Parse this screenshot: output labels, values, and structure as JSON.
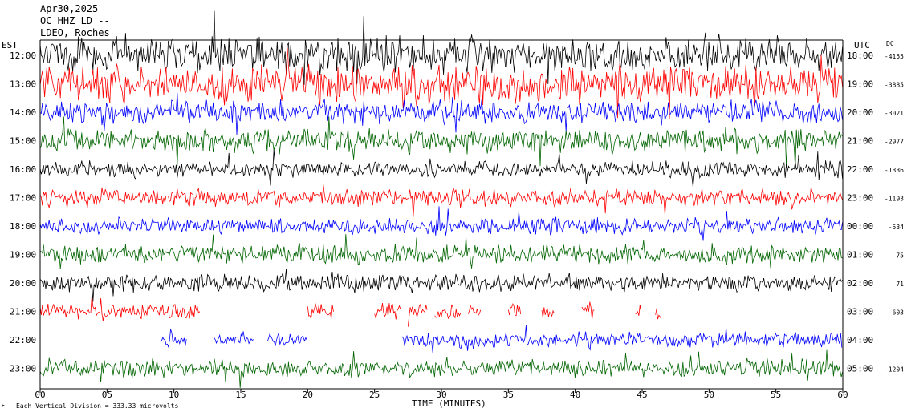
{
  "header": {
    "date": "Apr30,2025",
    "channel": "OC HHZ LD --",
    "station": "LDEO, Roches"
  },
  "axes": {
    "left_label": "EST",
    "right_label": "UTC",
    "dc_label": "DC",
    "x_title": "TIME (MINUTES)",
    "footer_note": "Each Vertical Division =  333.33 microvolts"
  },
  "colors": {
    "trace_cycle": [
      "#000000",
      "#ff0000",
      "#0000ff",
      "#006400"
    ],
    "background": "#ffffff"
  },
  "chart_data": {
    "type": "line",
    "title": "",
    "xlabel": "TIME (MINUTES)",
    "ylabel": "",
    "x_range": [
      0,
      60
    ],
    "x_ticks": [
      "00",
      "05",
      "10",
      "15",
      "20",
      "25",
      "30",
      "35",
      "40",
      "45",
      "50",
      "55",
      "60"
    ],
    "grid": false,
    "rows": [
      {
        "est": "12:00",
        "utc": "18:00",
        "dc": "-4155",
        "color": "#000000",
        "amp": 24,
        "segments": [
          [
            0,
            60
          ]
        ]
      },
      {
        "est": "13:00",
        "utc": "19:00",
        "dc": "-3885",
        "color": "#ff0000",
        "amp": 26,
        "segments": [
          [
            0,
            60
          ]
        ]
      },
      {
        "est": "14:00",
        "utc": "20:00",
        "dc": "-3021",
        "color": "#0000ff",
        "amp": 16,
        "segments": [
          [
            0,
            60
          ]
        ]
      },
      {
        "est": "15:00",
        "utc": "21:00",
        "dc": "-2977",
        "color": "#006400",
        "amp": 16,
        "segments": [
          [
            0,
            60
          ]
        ]
      },
      {
        "est": "16:00",
        "utc": "22:00",
        "dc": "-1336",
        "color": "#000000",
        "amp": 11,
        "segments": [
          [
            0,
            60
          ]
        ]
      },
      {
        "est": "17:00",
        "utc": "23:00",
        "dc": "-1193",
        "color": "#ff0000",
        "amp": 12,
        "segments": [
          [
            0,
            60
          ]
        ]
      },
      {
        "est": "18:00",
        "utc": "00:00",
        "dc": "-534",
        "color": "#0000ff",
        "amp": 11,
        "segments": [
          [
            0,
            60
          ]
        ]
      },
      {
        "est": "19:00",
        "utc": "01:00",
        "dc": "75",
        "color": "#006400",
        "amp": 13,
        "segments": [
          [
            0,
            60
          ]
        ]
      },
      {
        "est": "20:00",
        "utc": "02:00",
        "dc": "71",
        "color": "#000000",
        "amp": 12,
        "segments": [
          [
            0,
            60
          ]
        ]
      },
      {
        "est": "21:00",
        "utc": "03:00",
        "dc": "-603",
        "color": "#ff0000",
        "amp": 11,
        "segments": [
          [
            0,
            12
          ],
          [
            20,
            22
          ],
          [
            25,
            27
          ],
          [
            27.5,
            29
          ],
          [
            29.5,
            31.5
          ],
          [
            32,
            33
          ],
          [
            35,
            36
          ],
          [
            37.5,
            38.5
          ],
          [
            40.5,
            41.5
          ],
          [
            44.5,
            45
          ],
          [
            46,
            46.5
          ]
        ]
      },
      {
        "est": "22:00",
        "utc": "04:00",
        "dc": "",
        "color": "#0000ff",
        "amp": 10,
        "segments": [
          [
            9,
            11
          ],
          [
            13,
            16
          ],
          [
            17,
            20
          ],
          [
            27,
            60
          ]
        ]
      },
      {
        "est": "23:00",
        "utc": "05:00",
        "dc": "-1204",
        "color": "#006400",
        "amp": 12,
        "segments": [
          [
            0,
            60
          ]
        ]
      }
    ]
  }
}
